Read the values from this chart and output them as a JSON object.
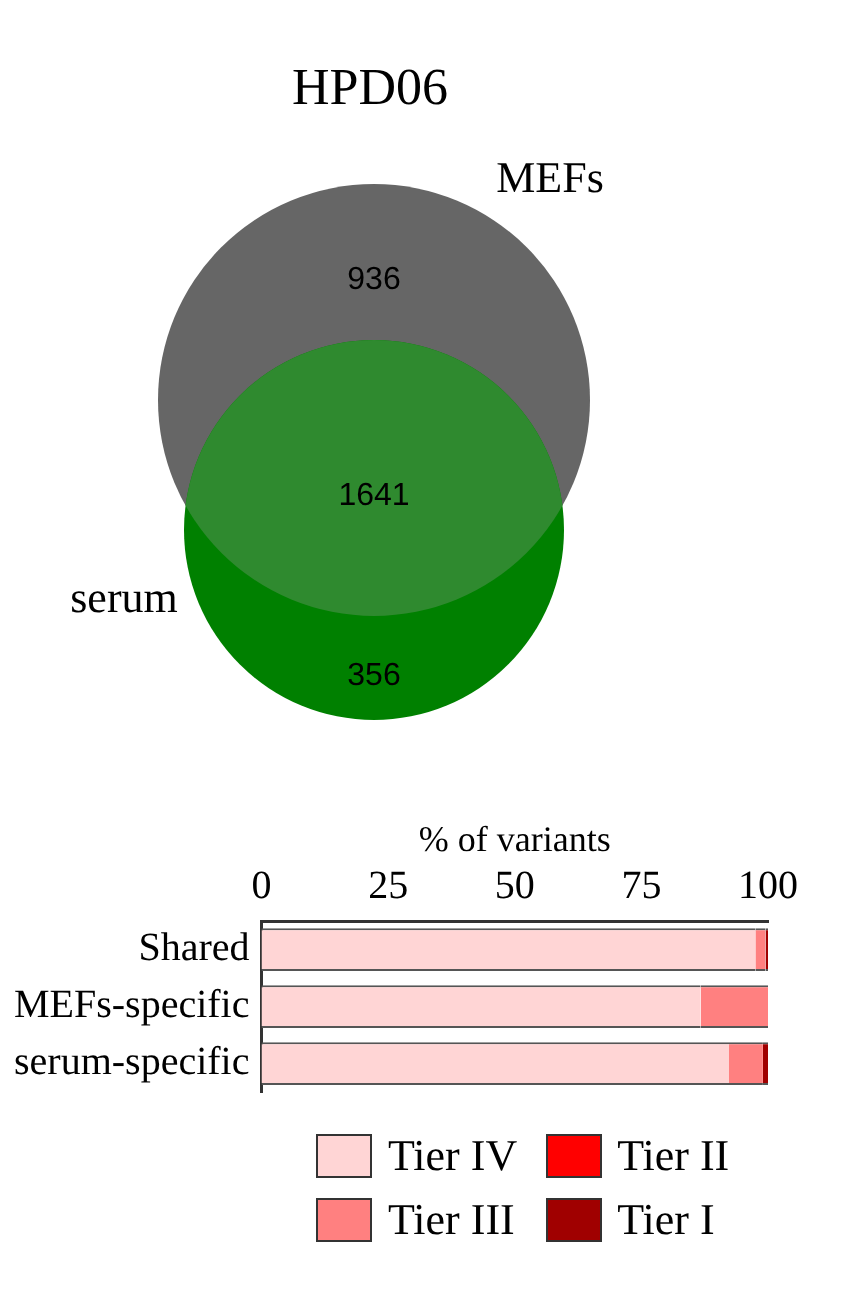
{
  "chart_data": [
    {
      "type": "other",
      "title": "HPD06",
      "categories": [
        "MEFs",
        null,
        "serum"
      ],
      "values": [
        936,
        1641,
        356
      ],
      "data_labels": true,
      "colors": [
        "#666666",
        "#2f8a2f",
        "#008000"
      ]
    },
    {
      "type": "bar",
      "orientation": "horizontal",
      "stacked": true,
      "xlabel": "% of variants",
      "categories": [
        "Shared",
        "MEFs-specific",
        "serum-specific"
      ],
      "xlim": [
        0,
        100
      ],
      "xticks": [
        0,
        25,
        50,
        75,
        100
      ],
      "grid": false,
      "legend": "bottom",
      "series": [
        {
          "name": "Tier IV",
          "color": "#ffd5d5",
          "values": [
            97.5,
            86.7,
            92.3
          ]
        },
        {
          "name": "Tier III",
          "color": "#ff8080",
          "values": [
            2,
            13.3,
            6.7
          ]
        },
        {
          "name": "Tier II",
          "color": "#ff0000",
          "values": [
            0,
            0,
            0
          ]
        },
        {
          "name": "Tier I",
          "color": "#a00000",
          "values": [
            0.5,
            0,
            1
          ]
        }
      ]
    }
  ]
}
